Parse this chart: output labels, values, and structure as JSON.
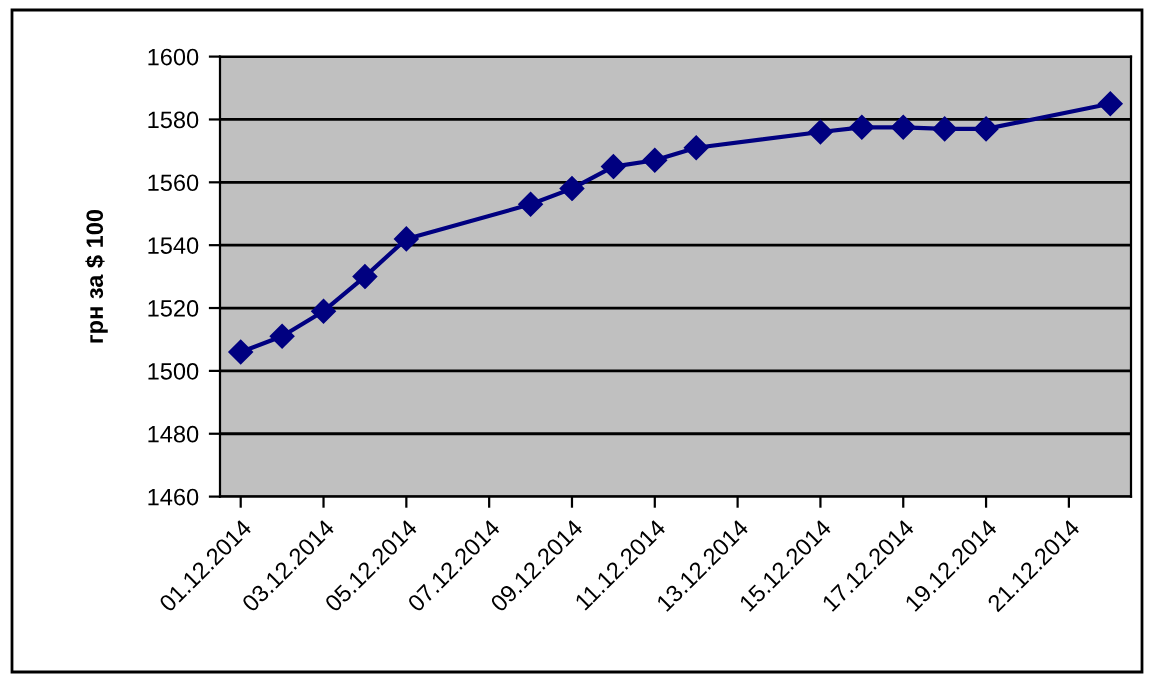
{
  "chart_data": {
    "type": "line",
    "ylabel": "грн за $ 100",
    "x": [
      "2014-12-01",
      "2014-12-02",
      "2014-12-03",
      "2014-12-04",
      "2014-12-05",
      "2014-12-08",
      "2014-12-09",
      "2014-12-10",
      "2014-12-11",
      "2014-12-12",
      "2014-12-15",
      "2014-12-16",
      "2014-12-17",
      "2014-12-18",
      "2014-12-19",
      "2014-12-22"
    ],
    "series": [
      {
        "color": "#000080",
        "values": [
          1506,
          1511,
          1519,
          1530,
          1542,
          1553,
          1558,
          1565,
          1567,
          1571,
          1576,
          1577.5,
          1577.5,
          1577,
          1577,
          1585
        ]
      }
    ],
    "xlim": [
      "2014-11-30T12:00",
      "2014-12-22T12:00"
    ],
    "xticks": [
      {
        "value": "2014-12-01",
        "label": "01.12.2014"
      },
      {
        "value": "2014-12-03",
        "label": "03.12.2014"
      },
      {
        "value": "2014-12-05",
        "label": "05.12.2014"
      },
      {
        "value": "2014-12-07",
        "label": "07.12.2014"
      },
      {
        "value": "2014-12-09",
        "label": "09.12.2014"
      },
      {
        "value": "2014-12-11",
        "label": "11.12.2014"
      },
      {
        "value": "2014-12-13",
        "label": "13.12.2014"
      },
      {
        "value": "2014-12-15",
        "label": "15.12.2014"
      },
      {
        "value": "2014-12-17",
        "label": "17.12.2014"
      },
      {
        "value": "2014-12-19",
        "label": "19.12.2014"
      },
      {
        "value": "2014-12-21",
        "label": "21.12.2014"
      }
    ],
    "ylim": [
      1460,
      1600
    ],
    "yticks": [
      1460,
      1480,
      1500,
      1520,
      1540,
      1560,
      1580,
      1600
    ],
    "grid": "y",
    "marker": "diamond",
    "line_style": "solid"
  }
}
